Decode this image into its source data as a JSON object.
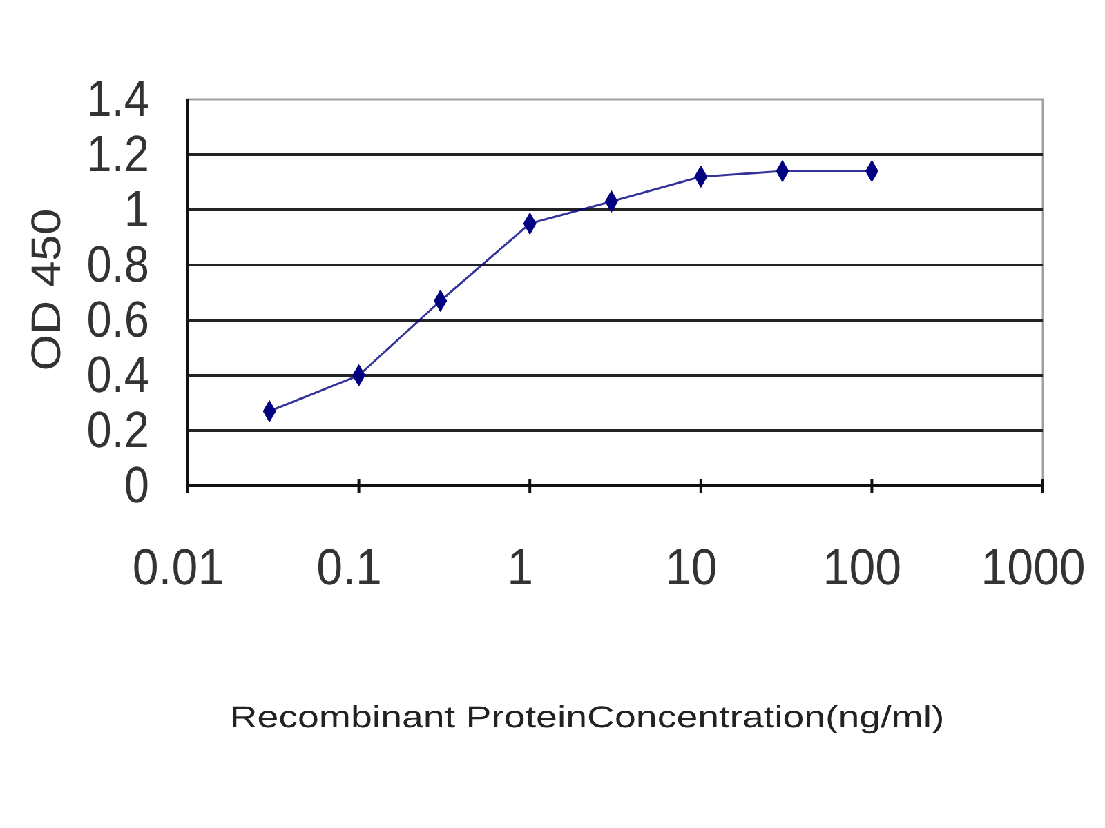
{
  "chart_data": {
    "type": "line",
    "xlabel": "Recombinant ProteinConcentration(ng/ml)",
    "ylabel": "OD 450",
    "x": [
      0.03,
      0.1,
      0.3,
      1,
      3,
      10,
      30,
      100
    ],
    "series": [
      {
        "color": "#000080",
        "values": [
          0.27,
          0.4,
          0.67,
          0.95,
          1.03,
          1.12,
          1.14,
          1.14
        ]
      }
    ],
    "log": "x",
    "xlim": [
      0.01,
      1000
    ],
    "xticks": [
      0.01,
      0.1,
      1,
      10,
      100,
      1000
    ],
    "ylim": [
      0,
      1.4
    ],
    "yticks": [
      0,
      0.2,
      0.4,
      0.6,
      0.8,
      1,
      1.2,
      1.4
    ],
    "grid": "y",
    "marker": "diamond",
    "line_style": "solid"
  }
}
